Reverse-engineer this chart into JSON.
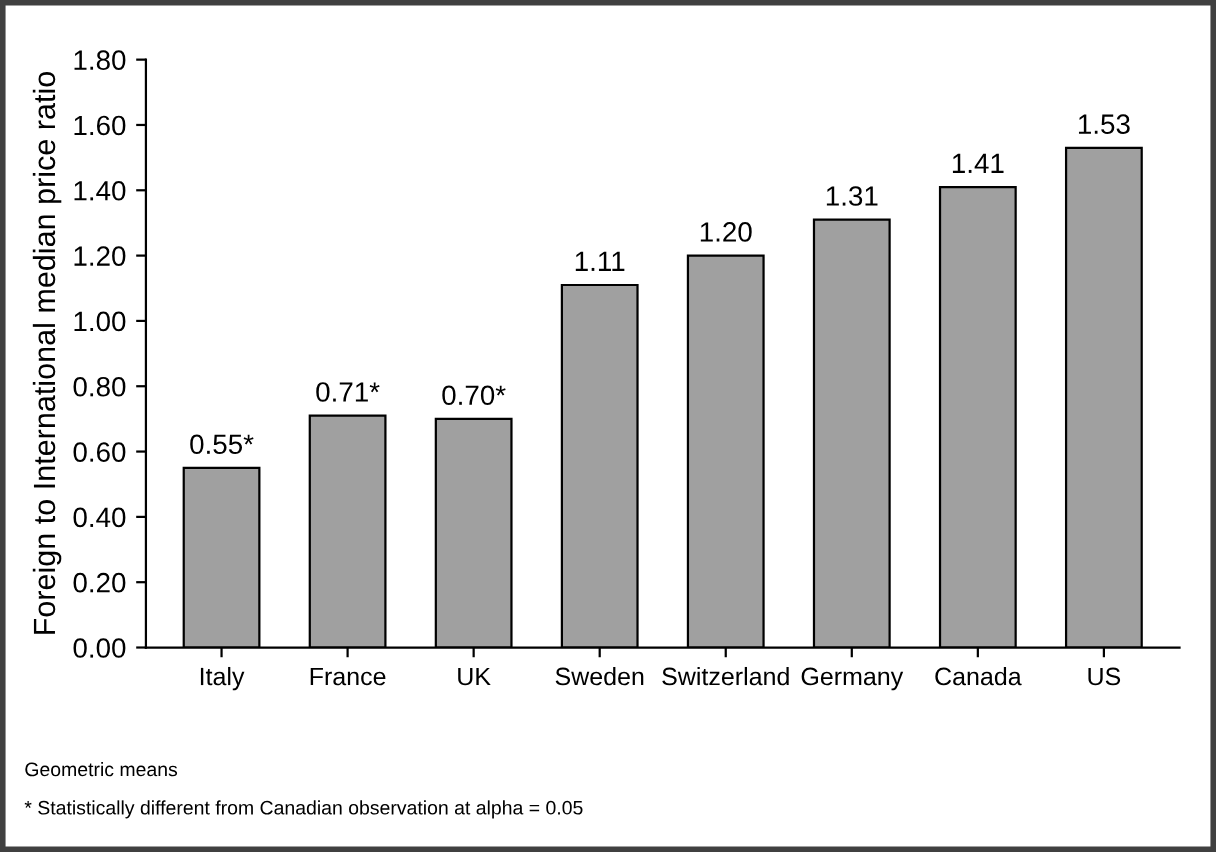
{
  "chart_data": {
    "type": "bar",
    "ylabel": "Foreign to International median price ratio",
    "categories": [
      "Italy",
      "France",
      "UK",
      "Sweden",
      "Switzerland",
      "Germany",
      "Canada",
      "US"
    ],
    "values": [
      0.55,
      0.71,
      0.7,
      1.11,
      1.2,
      1.31,
      1.41,
      1.53
    ],
    "value_labels": [
      "0.55*",
      "0.71*",
      "0.70*",
      "1.11",
      "1.20",
      "1.31",
      "1.41",
      "1.53"
    ],
    "color": "#a0a0a0",
    "ylim": [
      0,
      1.8
    ],
    "yticks": [
      {
        "value": 0,
        "label": "0.00"
      },
      {
        "value": 0.2,
        "label": "0.20"
      },
      {
        "value": 0.4,
        "label": "0.40"
      },
      {
        "value": 0.6,
        "label": "0.60"
      },
      {
        "value": 0.8,
        "label": "0.80"
      },
      {
        "value": 1.0,
        "label": "1.00"
      },
      {
        "value": 1.2,
        "label": "1.20"
      },
      {
        "value": 1.4,
        "label": "1.40"
      },
      {
        "value": 1.6,
        "label": "1.60"
      },
      {
        "value": 1.8,
        "label": "1.80"
      }
    ],
    "grid": false,
    "legend": false,
    "annotations": [
      "Geometric means",
      "* Statistically different from Canadian observation at alpha = 0.05"
    ]
  }
}
